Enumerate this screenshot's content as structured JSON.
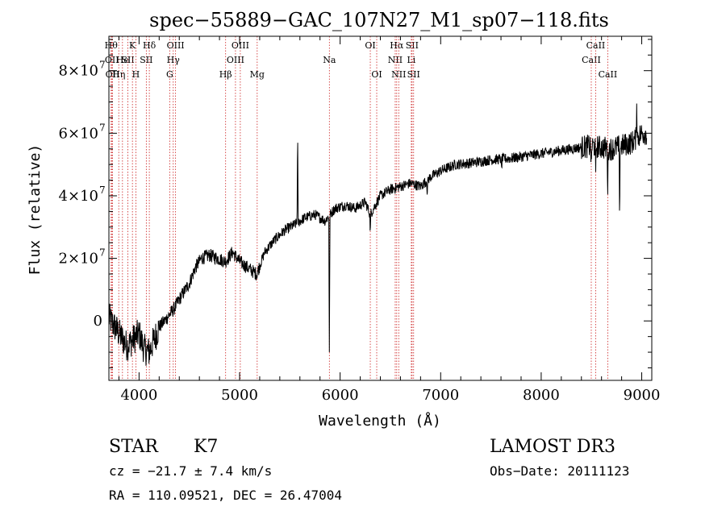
{
  "chart_data": {
    "type": "line",
    "title": "spec−55889−GAC_107N27_M1_sp07−118.fits",
    "xlabel": "Wavelength (Å)",
    "ylabel": "Flux (relative)",
    "xlim": [
      3700,
      9100
    ],
    "ylim": [
      -19000000,
      91000000
    ],
    "x_ticks": [
      {
        "value": 4000,
        "label": "4000"
      },
      {
        "value": 5000,
        "label": "5000"
      },
      {
        "value": 6000,
        "label": "6000"
      },
      {
        "value": 7000,
        "label": "7000"
      },
      {
        "value": 8000,
        "label": "8000"
      },
      {
        "value": 9000,
        "label": "9000"
      }
    ],
    "y_ticks": [
      {
        "value": 0,
        "label": "0"
      },
      {
        "value": 20000000,
        "label": "2×10",
        "exp": "7"
      },
      {
        "value": 40000000,
        "label": "4×10",
        "exp": "7"
      },
      {
        "value": 60000000,
        "label": "6×10",
        "exp": "7"
      },
      {
        "value": 80000000,
        "label": "8×10",
        "exp": "7"
      }
    ],
    "series": [
      {
        "name": "spectrum",
        "anchors": [
          [
            3700,
            1000000
          ],
          [
            3760,
            -2000000
          ],
          [
            3820,
            -5000000
          ],
          [
            3880,
            -8000000
          ],
          [
            3940,
            -6000000
          ],
          [
            4000,
            -4000000
          ],
          [
            4050,
            -9000000
          ],
          [
            4100,
            -10000000
          ],
          [
            4150,
            -6000000
          ],
          [
            4200,
            -2000000
          ],
          [
            4280,
            1000000
          ],
          [
            4350,
            4000000
          ],
          [
            4420,
            8000000
          ],
          [
            4500,
            12000000
          ],
          [
            4560,
            17000000
          ],
          [
            4620,
            20000000
          ],
          [
            4700,
            21000000
          ],
          [
            4780,
            20000000
          ],
          [
            4860,
            19000000
          ],
          [
            4930,
            22000000
          ],
          [
            5000,
            19000000
          ],
          [
            5080,
            17000000
          ],
          [
            5170,
            15000000
          ],
          [
            5250,
            22000000
          ],
          [
            5350,
            26000000
          ],
          [
            5450,
            29000000
          ],
          [
            5560,
            31000000
          ],
          [
            5650,
            33000000
          ],
          [
            5750,
            34000000
          ],
          [
            5850,
            32000000
          ],
          [
            5950,
            36000000
          ],
          [
            6050,
            37000000
          ],
          [
            6150,
            36000000
          ],
          [
            6250,
            38000000
          ],
          [
            6300,
            34000000
          ],
          [
            6400,
            40000000
          ],
          [
            6500,
            42000000
          ],
          [
            6600,
            43000000
          ],
          [
            6700,
            44000000
          ],
          [
            6800,
            43000000
          ],
          [
            6900,
            46000000
          ],
          [
            7000,
            48000000
          ],
          [
            7150,
            50000000
          ],
          [
            7300,
            50500000
          ],
          [
            7500,
            51500000
          ],
          [
            7700,
            52000000
          ],
          [
            7900,
            53000000
          ],
          [
            8100,
            54000000
          ],
          [
            8300,
            55000000
          ],
          [
            8500,
            56000000
          ],
          [
            8700,
            55000000
          ],
          [
            8800,
            56000000
          ],
          [
            8900,
            57000000
          ],
          [
            9000,
            60000000
          ]
        ],
        "features": [
          {
            "x": 5577,
            "dy": 29000000
          },
          {
            "x": 5893,
            "dy": -44000000
          },
          {
            "x": 6300,
            "dy": -6000000
          },
          {
            "x": 6867,
            "dy": -5000000
          },
          {
            "x": 7605,
            "dy": -4000000
          },
          {
            "x": 8498,
            "dy": -8000000
          },
          {
            "x": 8542,
            "dy": -10000000
          },
          {
            "x": 8662,
            "dy": -13000000
          },
          {
            "x": 8780,
            "dy": -21000000
          },
          {
            "x": 8950,
            "dy": 12000000
          }
        ]
      }
    ],
    "line_marks": [
      {
        "x": 3722,
        "label": "Hθ",
        "row": 0
      },
      {
        "x": 3730,
        "label": "OII",
        "row": 1
      },
      {
        "x": 3736,
        "label": "OII",
        "row": 2
      },
      {
        "x": 3798,
        "label": "Hη",
        "row": 2
      },
      {
        "x": 3835,
        "label": "He",
        "row": 1
      },
      {
        "x": 3889,
        "label": "SII",
        "row": 1
      },
      {
        "x": 3934,
        "label": "K",
        "row": 0
      },
      {
        "x": 3968,
        "label": "H",
        "row": 2
      },
      {
        "x": 4072,
        "label": "SII",
        "row": 1
      },
      {
        "x": 4102,
        "label": "Hδ",
        "row": 0
      },
      {
        "x": 4305,
        "label": "G",
        "row": 2
      },
      {
        "x": 4340,
        "label": "Hγ",
        "row": 1
      },
      {
        "x": 4363,
        "label": "OIII",
        "row": 0
      },
      {
        "x": 4861,
        "label": "Hβ",
        "row": 2
      },
      {
        "x": 4959,
        "label": "OIII",
        "row": 1
      },
      {
        "x": 5007,
        "label": "OIII",
        "row": 0
      },
      {
        "x": 5175,
        "label": "Mg",
        "row": 2
      },
      {
        "x": 5893,
        "label": "Na",
        "row": 1
      },
      {
        "x": 6300,
        "label": "OI",
        "row": 0
      },
      {
        "x": 6364,
        "label": "OI",
        "row": 2
      },
      {
        "x": 6548,
        "label": "NII",
        "row": 1
      },
      {
        "x": 6563,
        "label": "Hα",
        "row": 0
      },
      {
        "x": 6583,
        "label": "NII",
        "row": 2
      },
      {
        "x": 6708,
        "label": "Li",
        "row": 1
      },
      {
        "x": 6716,
        "label": "SII",
        "row": 0
      },
      {
        "x": 6731,
        "label": "SII",
        "row": 2
      },
      {
        "x": 8498,
        "label": "CaII",
        "row": 1
      },
      {
        "x": 8542,
        "label": "CaII",
        "row": 0
      },
      {
        "x": 8662,
        "label": "CaII",
        "row": 2
      }
    ]
  },
  "info": {
    "class_label": "STAR",
    "subclass": "K7",
    "survey": "LAMOST DR3",
    "cz": "cz = −21.7 ± 7.4 km/s",
    "obs_date": "Obs−Date: 20111123",
    "coords": "RA = 110.09521, DEC =  26.47004"
  },
  "colors": {
    "axis": "#000000",
    "spectrum": "#000000",
    "line_mark": "#cc2222"
  }
}
